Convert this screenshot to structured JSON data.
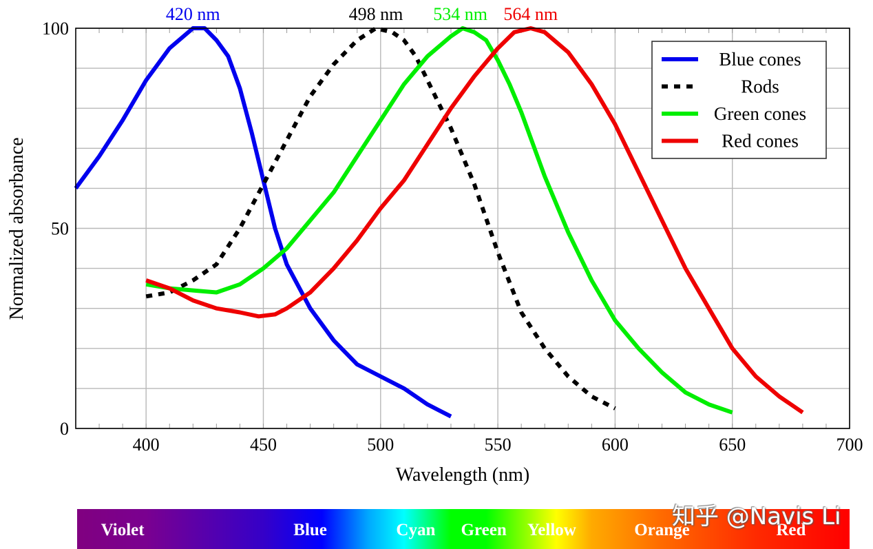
{
  "chart_data": {
    "type": "line",
    "title": "",
    "xlabel": "Wavelength (nm)",
    "ylabel": "Normalized absorbance",
    "xlim": [
      370,
      700
    ],
    "ylim": [
      0,
      100
    ],
    "grid": true,
    "x_ticks": [
      400,
      450,
      500,
      550,
      600,
      650,
      700
    ],
    "y_ticks": [
      0,
      50,
      100
    ],
    "x_minor_step": 10,
    "y_grid_step": 10,
    "legend_position": "top-right",
    "series": [
      {
        "name": "Blue cones",
        "color": "#0000ee",
        "style": "solid",
        "peak_label": "420 nm",
        "peak_x": 420,
        "x": [
          370,
          380,
          390,
          400,
          410,
          420,
          425,
          430,
          435,
          440,
          445,
          450,
          455,
          460,
          470,
          480,
          490,
          500,
          510,
          520,
          530
        ],
        "y": [
          60,
          68,
          77,
          87,
          95,
          100,
          100,
          97,
          93,
          85,
          74,
          62,
          50,
          41,
          30,
          22,
          16,
          13,
          10,
          6,
          3
        ]
      },
      {
        "name": "Rods",
        "color": "#000000",
        "style": "dashed",
        "peak_label": "498 nm",
        "peak_x": 498,
        "x": [
          400,
          410,
          420,
          430,
          440,
          450,
          460,
          470,
          480,
          490,
          498,
          505,
          510,
          515,
          520,
          530,
          540,
          550,
          560,
          570,
          580,
          590,
          600
        ],
        "y": [
          33,
          34,
          37,
          41,
          50,
          61,
          72,
          83,
          91,
          97,
          100,
          99,
          97,
          93,
          87,
          75,
          61,
          44,
          29,
          20,
          13,
          8,
          5
        ]
      },
      {
        "name": "Green cones",
        "color": "#00ee00",
        "style": "solid",
        "peak_label": "534 nm",
        "peak_x": 534,
        "x": [
          400,
          410,
          420,
          430,
          440,
          450,
          460,
          470,
          480,
          490,
          500,
          510,
          520,
          530,
          535,
          540,
          545,
          550,
          555,
          560,
          570,
          580,
          590,
          600,
          610,
          620,
          630,
          640,
          650
        ],
        "y": [
          36,
          35,
          34.5,
          34,
          36,
          40,
          45,
          52,
          59,
          68,
          77,
          86,
          93,
          98,
          100,
          99,
          97,
          92,
          86,
          79,
          63,
          49,
          37,
          27,
          20,
          14,
          9,
          6,
          4
        ]
      },
      {
        "name": "Red cones",
        "color": "#ee0000",
        "style": "solid",
        "peak_label": "564 nm",
        "peak_x": 564,
        "x": [
          400,
          410,
          420,
          430,
          440,
          448,
          455,
          460,
          470,
          480,
          490,
          500,
          510,
          520,
          530,
          540,
          550,
          557,
          564,
          570,
          580,
          590,
          600,
          610,
          620,
          630,
          640,
          650,
          660,
          670,
          680
        ],
        "y": [
          37,
          35,
          32,
          30,
          29,
          28,
          28.5,
          30,
          34,
          40,
          47,
          55,
          62,
          71,
          80,
          88,
          95,
          99,
          100,
          99,
          94,
          86,
          76,
          64,
          52,
          40,
          30,
          20,
          13,
          8,
          4
        ]
      }
    ]
  },
  "spectrum_bar": {
    "labels": [
      "Violet",
      "Blue",
      "Cyan",
      "Green",
      "Yellow",
      "Orange",
      "Red"
    ],
    "label_wavelengths": [
      390,
      470,
      515,
      544,
      573,
      620,
      675
    ],
    "color_stops": [
      {
        "nm": 370,
        "color": "#800080"
      },
      {
        "nm": 400,
        "color": "#7a0090"
      },
      {
        "nm": 450,
        "color": "#3500c8"
      },
      {
        "nm": 475,
        "color": "#0000ff"
      },
      {
        "nm": 495,
        "color": "#00aaff"
      },
      {
        "nm": 510,
        "color": "#00ffff"
      },
      {
        "nm": 530,
        "color": "#00ff00"
      },
      {
        "nm": 545,
        "color": "#00ff00"
      },
      {
        "nm": 575,
        "color": "#ffff00"
      },
      {
        "nm": 590,
        "color": "#ffaa00"
      },
      {
        "nm": 620,
        "color": "#ff6a00"
      },
      {
        "nm": 660,
        "color": "#ff2a00"
      },
      {
        "nm": 700,
        "color": "#ff0000"
      }
    ]
  },
  "watermark": "知乎 @Navis Li"
}
